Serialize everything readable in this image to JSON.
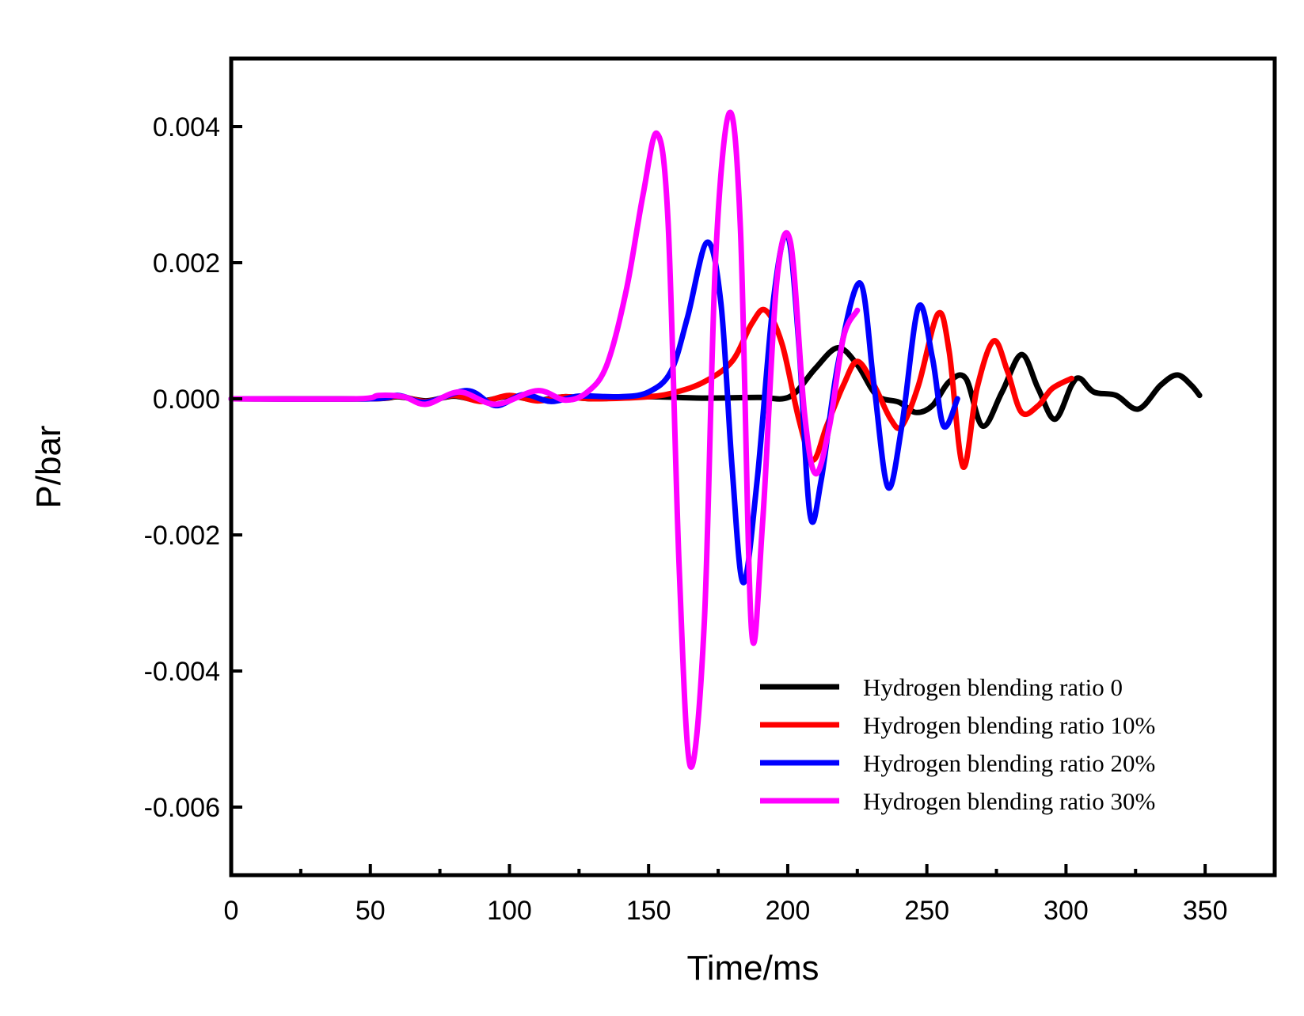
{
  "chart_data": {
    "type": "line",
    "title": "",
    "xlabel": "Time/ms",
    "ylabel": "P/bar",
    "xlim": [
      0,
      375
    ],
    "ylim": [
      -0.007,
      0.005
    ],
    "x_ticks": [
      0,
      50,
      100,
      150,
      200,
      250,
      300,
      350
    ],
    "x_tick_labels": [
      "0",
      "50",
      "100",
      "150",
      "200",
      "250",
      "300",
      "350"
    ],
    "y_ticks": [
      -0.006,
      -0.004,
      -0.002,
      0.0,
      0.002,
      0.004
    ],
    "y_tick_labels": [
      "-0.006",
      "-0.004",
      "-0.002",
      "0.000",
      "0.002",
      "0.004"
    ],
    "grid": false,
    "legend_position": "bottom-right",
    "series": [
      {
        "name": "Hydrogen blending ratio 0",
        "color": "#000000",
        "points": [
          [
            0,
            0
          ],
          [
            50,
            0
          ],
          [
            60,
            3e-05
          ],
          [
            70,
            -3e-05
          ],
          [
            80,
            4e-05
          ],
          [
            90,
            -3e-05
          ],
          [
            100,
            4e-05
          ],
          [
            110,
            -2e-05
          ],
          [
            120,
            3e-05
          ],
          [
            130,
            0
          ],
          [
            150,
            3e-05
          ],
          [
            170,
            1e-05
          ],
          [
            190,
            2e-05
          ],
          [
            198,
            0
          ],
          [
            203,
            0.0001
          ],
          [
            210,
            0.00045
          ],
          [
            218,
            0.00075
          ],
          [
            225,
            0.0005
          ],
          [
            232,
            5e-05
          ],
          [
            240,
            -5e-05
          ],
          [
            246,
            -0.0002
          ],
          [
            252,
            -0.0001
          ],
          [
            258,
            0.00025
          ],
          [
            264,
            0.0003
          ],
          [
            270,
            -0.0004
          ],
          [
            277,
            0.0001
          ],
          [
            284,
            0.00065
          ],
          [
            290,
            0.00015
          ],
          [
            296,
            -0.0003
          ],
          [
            302,
            0.0002
          ],
          [
            305,
            0.0003
          ],
          [
            310,
            0.0001
          ],
          [
            318,
            5e-05
          ],
          [
            326,
            -0.00015
          ],
          [
            334,
            0.0002
          ],
          [
            340,
            0.00035
          ],
          [
            345,
            0.0002
          ],
          [
            348,
            5e-05
          ]
        ]
      },
      {
        "name": "Hydrogen blending ratio 10%",
        "color": "#ff0000",
        "points": [
          [
            0,
            0
          ],
          [
            50,
            0
          ],
          [
            60,
            4e-05
          ],
          [
            70,
            -4e-05
          ],
          [
            80,
            5e-05
          ],
          [
            90,
            -4e-05
          ],
          [
            100,
            5e-05
          ],
          [
            110,
            -3e-05
          ],
          [
            120,
            3e-05
          ],
          [
            130,
            0
          ],
          [
            150,
            3e-05
          ],
          [
            160,
            0.0001
          ],
          [
            170,
            0.00025
          ],
          [
            180,
            0.00055
          ],
          [
            187,
            0.0011
          ],
          [
            192,
            0.0013
          ],
          [
            198,
            0.0008
          ],
          [
            204,
            -0.0003
          ],
          [
            209,
            -0.0009
          ],
          [
            214,
            -0.0004
          ],
          [
            220,
            0.0002
          ],
          [
            225,
            0.00055
          ],
          [
            231,
            0.0002
          ],
          [
            237,
            -0.0003
          ],
          [
            241,
            -0.0004
          ],
          [
            247,
            0.0002
          ],
          [
            254,
            0.00125
          ],
          [
            258,
            0.0007
          ],
          [
            263,
            -0.001
          ],
          [
            268,
            0.00015
          ],
          [
            274,
            0.00085
          ],
          [
            279,
            0.0004
          ],
          [
            284,
            -0.0002
          ],
          [
            290,
            -0.0001
          ],
          [
            295,
            0.00015
          ],
          [
            302,
            0.0003
          ]
        ]
      },
      {
        "name": "Hydrogen blending ratio 20%",
        "color": "#0000ff",
        "points": [
          [
            0,
            0
          ],
          [
            50,
            0
          ],
          [
            60,
            5e-05
          ],
          [
            70,
            -5e-05
          ],
          [
            85,
            0.00012
          ],
          [
            95,
            -0.0001
          ],
          [
            105,
            6e-05
          ],
          [
            115,
            -4e-05
          ],
          [
            125,
            4e-05
          ],
          [
            140,
            3e-05
          ],
          [
            150,
            0.0001
          ],
          [
            158,
            0.0004
          ],
          [
            164,
            0.0012
          ],
          [
            171,
            0.0023
          ],
          [
            176,
            0.0014
          ],
          [
            180,
            -0.001
          ],
          [
            184,
            -0.0027
          ],
          [
            189,
            -0.0012
          ],
          [
            195,
            0.0015
          ],
          [
            200,
            0.0024
          ],
          [
            204,
            0.0008
          ],
          [
            208,
            -0.0017
          ],
          [
            212,
            -0.0012
          ],
          [
            218,
            0.0005
          ],
          [
            226,
            0.0017
          ],
          [
            231,
            0.0002
          ],
          [
            236,
            -0.0013
          ],
          [
            241,
            -0.0004
          ],
          [
            247,
            0.00135
          ],
          [
            252,
            0.0006
          ],
          [
            256,
            -0.0004
          ],
          [
            261,
            0
          ]
        ]
      },
      {
        "name": "Hydrogen blending ratio 30%",
        "color": "#ff00ff",
        "points": [
          [
            0,
            0
          ],
          [
            45,
            0
          ],
          [
            53,
            5e-05
          ],
          [
            62,
            3e-05
          ],
          [
            70,
            -8e-05
          ],
          [
            82,
            0.0001
          ],
          [
            95,
            -8e-05
          ],
          [
            110,
            0.00012
          ],
          [
            120,
            -2e-05
          ],
          [
            128,
            0.0001
          ],
          [
            135,
            0.0005
          ],
          [
            142,
            0.0016
          ],
          [
            148,
            0.003
          ],
          [
            153,
            0.0039
          ],
          [
            157,
            0.0026
          ],
          [
            161,
            -0.0025
          ],
          [
            165,
            -0.0054
          ],
          [
            170,
            -0.0033
          ],
          [
            174,
            0.002
          ],
          [
            179,
            0.0042
          ],
          [
            183,
            0.0025
          ],
          [
            187,
            -0.0034
          ],
          [
            191,
            -0.0018
          ],
          [
            196,
            0.0017
          ],
          [
            201,
            0.0023
          ],
          [
            206,
            -0.0002
          ],
          [
            210,
            -0.0011
          ],
          [
            215,
            -0.0004
          ],
          [
            220,
            0.0009
          ],
          [
            225,
            0.0013
          ]
        ]
      }
    ]
  }
}
